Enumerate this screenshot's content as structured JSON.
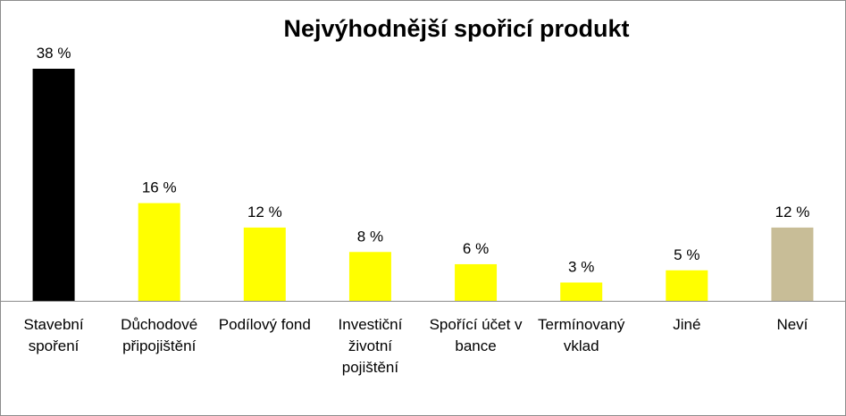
{
  "chart_data": {
    "type": "bar",
    "title": "Nejvýhodnější spořicí produkt",
    "xlabel": "",
    "ylabel": "",
    "ylim": [
      0,
      38
    ],
    "grid": false,
    "legend": "none",
    "categories": [
      "Stavební spoření",
      "Důchodové připojištění",
      "Podílový fond",
      "Investiční životní pojištění",
      "Spořící účet v bance",
      "Termínovaný vklad",
      "Jiné",
      "Neví"
    ],
    "values": [
      38,
      16,
      12,
      8,
      6,
      3,
      5,
      12
    ],
    "data_labels": [
      "38 %",
      "16 %",
      "12 %",
      "8 %",
      "6 %",
      "3 %",
      "5 %",
      "12 %"
    ],
    "bar_colors": [
      "#000000",
      "#ffff00",
      "#ffff00",
      "#ffff00",
      "#ffff00",
      "#ffff00",
      "#ffff00",
      "#c8bd97"
    ],
    "axis_color": "#8c8c8c"
  }
}
